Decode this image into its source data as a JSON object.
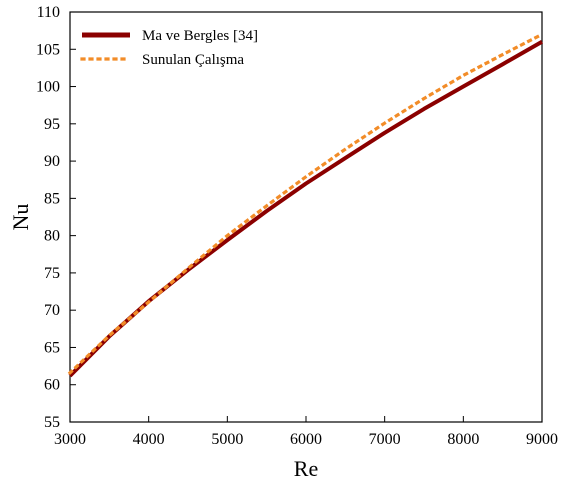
{
  "chart_data": {
    "type": "line",
    "title": "",
    "xlabel": "Re",
    "ylabel": "Nu",
    "xlim": [
      3000,
      9000
    ],
    "ylim": [
      55,
      110
    ],
    "xticks": [
      3000,
      4000,
      5000,
      6000,
      7000,
      8000,
      9000
    ],
    "yticks": [
      55,
      60,
      65,
      70,
      75,
      80,
      85,
      90,
      95,
      100,
      105,
      110
    ],
    "grid": false,
    "legend_position": "top-left",
    "series": [
      {
        "name": "Ma ve Bergles [34]",
        "style": "solid",
        "color": "#8b0000",
        "x": [
          3000,
          3500,
          4000,
          4500,
          5000,
          5500,
          6000,
          6500,
          7000,
          7500,
          8000,
          8500,
          9000
        ],
        "y": [
          61.2,
          66.5,
          71.2,
          75.4,
          79.4,
          83.3,
          87.0,
          90.4,
          93.8,
          97.0,
          100.0,
          103.0,
          106.0
        ]
      },
      {
        "name": "Sunulan Çalışma",
        "style": "dotted",
        "color": "#f28c28",
        "x": [
          3000,
          3500,
          4000,
          4500,
          5000,
          5500,
          6000,
          6500,
          7000,
          7500,
          8000,
          8500,
          9000
        ],
        "y": [
          61.6,
          66.6,
          71.1,
          75.6,
          80.0,
          84.0,
          87.9,
          91.6,
          95.1,
          98.4,
          101.5,
          104.3,
          107.0
        ]
      }
    ]
  }
}
